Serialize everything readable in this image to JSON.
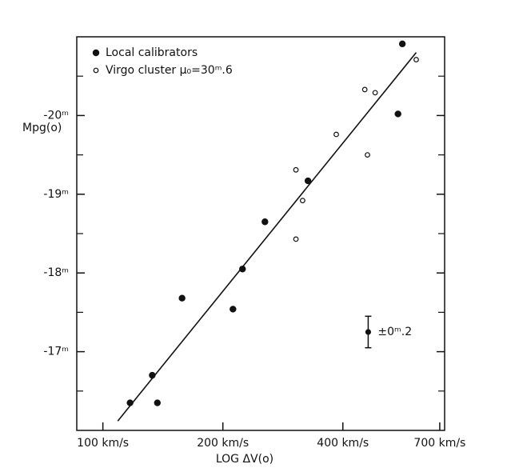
{
  "chart_data": {
    "type": "scatter",
    "x_label": "LOG ΔV(o)",
    "y_label": "Mpg(o)",
    "xlog": true,
    "xlim": [
      86,
      720
    ],
    "ylim": [
      -16,
      -21
    ],
    "xticks": [
      {
        "value": 100,
        "label": "100 km/s"
      },
      {
        "value": 200,
        "label": "200 km/s"
      },
      {
        "value": 400,
        "label": "400 km/s"
      },
      {
        "value": 700,
        "label": "700 km/s"
      }
    ],
    "yticks": [
      {
        "value": -20,
        "label": "-20ᵐ"
      },
      {
        "value": -19,
        "label": "-19ᵐ"
      },
      {
        "value": -18,
        "label": "-18ᵐ"
      },
      {
        "value": -17,
        "label": "-17ᵐ"
      }
    ],
    "yminorticks": [
      -20.5,
      -19.5,
      -18.5,
      -17.5,
      -16.5
    ],
    "legend": "upper left",
    "series": [
      {
        "name": "Local calibrators",
        "marker": "filled",
        "color": "#111",
        "x": [
          117,
          133,
          137,
          158,
          212,
          224,
          255,
          327,
          550,
          564
        ],
        "y": [
          -16.35,
          -16.7,
          -16.35,
          -17.68,
          -17.54,
          -18.05,
          -18.65,
          -19.17,
          -20.02,
          -20.91
        ]
      },
      {
        "name": "Virgo cluster μ₀=30ᵐ.6",
        "marker": "open",
        "color": "#111",
        "x": [
          305,
          317,
          305,
          385,
          454,
          482,
          461,
          611
        ],
        "y": [
          -19.31,
          -18.92,
          -18.43,
          -19.76,
          -20.33,
          -20.29,
          -19.5,
          -20.71
        ]
      }
    ],
    "fit_line": {
      "x": [
        109,
        611
      ],
      "y": [
        -16.12,
        -20.8
      ]
    },
    "error_bar": {
      "x": 463,
      "y": -17.25,
      "error": 0.2,
      "label": "±0ᵐ.2"
    }
  }
}
